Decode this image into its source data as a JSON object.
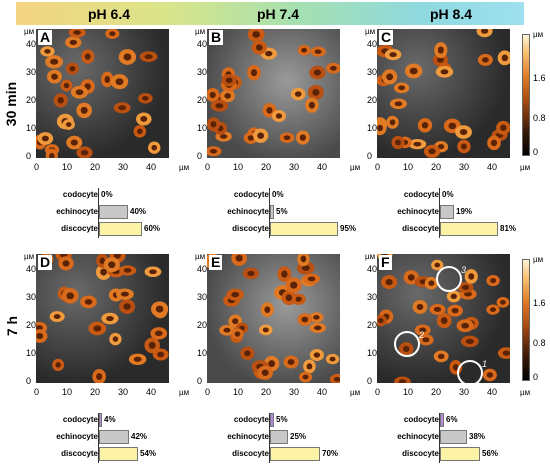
{
  "header": {
    "ph_labels": [
      "pH 6.4",
      "pH 7.4",
      "pH 8.4"
    ]
  },
  "rows": [
    "30 min",
    "7 h"
  ],
  "axis": {
    "x_ticks": [
      "0",
      "10",
      "20",
      "30",
      "40"
    ],
    "y_ticks": [
      "0",
      "10",
      "20",
      "30",
      "40"
    ],
    "unit": "µм"
  },
  "colorbar": {
    "ticks": [
      "0",
      "0.8",
      "1.6"
    ],
    "unit": "µм"
  },
  "categories": [
    "codocyte",
    "echinocyte",
    "discocyte"
  ],
  "panels": [
    {
      "letter": "A",
      "values": [
        "0%",
        "40%",
        "60%"
      ],
      "fractions": [
        0,
        0.4,
        0.6
      ]
    },
    {
      "letter": "B",
      "values": [
        "0%",
        "5%",
        "95%"
      ],
      "fractions": [
        0,
        0.05,
        0.95
      ]
    },
    {
      "letter": "C",
      "values": [
        "0%",
        "19%",
        "81%"
      ],
      "fractions": [
        0,
        0.19,
        0.81
      ]
    },
    {
      "letter": "D",
      "values": [
        "4%",
        "42%",
        "54%"
      ],
      "fractions": [
        0.04,
        0.42,
        0.54
      ]
    },
    {
      "letter": "E",
      "values": [
        "5%",
        "25%",
        "70%"
      ],
      "fractions": [
        0.05,
        0.25,
        0.7
      ]
    },
    {
      "letter": "F",
      "values": [
        "6%",
        "38%",
        "56%"
      ],
      "fractions": [
        0.06,
        0.38,
        0.56
      ]
    }
  ],
  "annotations": [
    "1",
    "2",
    "3"
  ],
  "colors": {
    "codocyte": "#b58ad6",
    "echinocyte": "#c8c8c8",
    "discocyte": "#fcf3a6"
  }
}
